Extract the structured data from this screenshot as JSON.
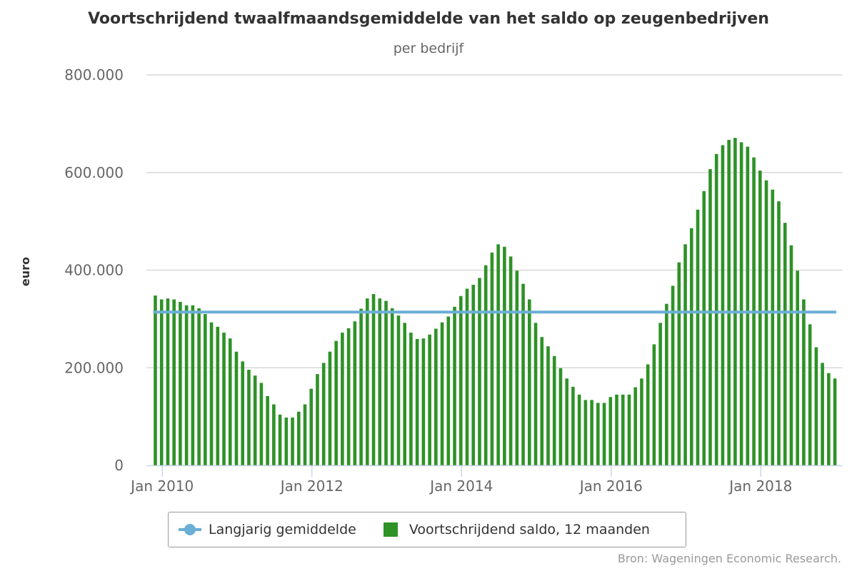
{
  "chart_data": {
    "type": "bar",
    "title": "Voortschrijdend twaalfmaandsgemiddelde van het saldo op zeugenbedrijven",
    "subtitle": "per bedrijf",
    "ylabel": "euro",
    "ylim": [
      0,
      800000
    ],
    "yticks": [
      "0",
      "200.000",
      "400.000",
      "600.000",
      "800.000"
    ],
    "yticks_values": [
      0,
      200000,
      400000,
      600000,
      800000
    ],
    "xticks": [
      "Jan 2010",
      "Jan 2012",
      "Jan 2014",
      "Jan 2016",
      "Jan 2018"
    ],
    "x_start": "Dec 2009",
    "x_interval": "month",
    "grid": true,
    "series": [
      {
        "name": "Voortschrijdend saldo, 12 maanden",
        "type": "bar",
        "color": "#2e9227",
        "values": [
          348000,
          340000,
          342000,
          340000,
          335000,
          328000,
          328000,
          322000,
          310000,
          293000,
          284000,
          272000,
          260000,
          233000,
          213000,
          196000,
          184000,
          169000,
          142000,
          125000,
          104000,
          98000,
          98000,
          110000,
          125000,
          157000,
          187000,
          210000,
          233000,
          255000,
          272000,
          281000,
          295000,
          321000,
          342000,
          351000,
          342000,
          337000,
          322000,
          307000,
          292000,
          272000,
          259000,
          260000,
          268000,
          280000,
          293000,
          305000,
          325000,
          347000,
          362000,
          370000,
          384000,
          410000,
          436000,
          453000,
          448000,
          428000,
          399000,
          372000,
          340000,
          292000,
          263000,
          244000,
          224000,
          199000,
          178000,
          161000,
          145000,
          134000,
          134000,
          128000,
          128000,
          140000,
          145000,
          145000,
          145000,
          160000,
          178000,
          207000,
          248000,
          292000,
          331000,
          368000,
          416000,
          453000,
          486000,
          524000,
          562000,
          607000,
          638000,
          656000,
          667000,
          671000,
          662000,
          653000,
          631000,
          604000,
          584000,
          565000,
          541000,
          497000,
          451000,
          399000,
          340000,
          289000,
          242000,
          210000,
          189000,
          178000
        ]
      },
      {
        "name": "Langjarig gemiddelde",
        "type": "line",
        "color": "#6baed6",
        "values": [
          314000
        ]
      }
    ],
    "legend": [
      "Langjarig gemiddelde",
      "Voortschrijdend saldo, 12 maanden"
    ]
  },
  "source": "Bron: Wageningen Economic Research."
}
